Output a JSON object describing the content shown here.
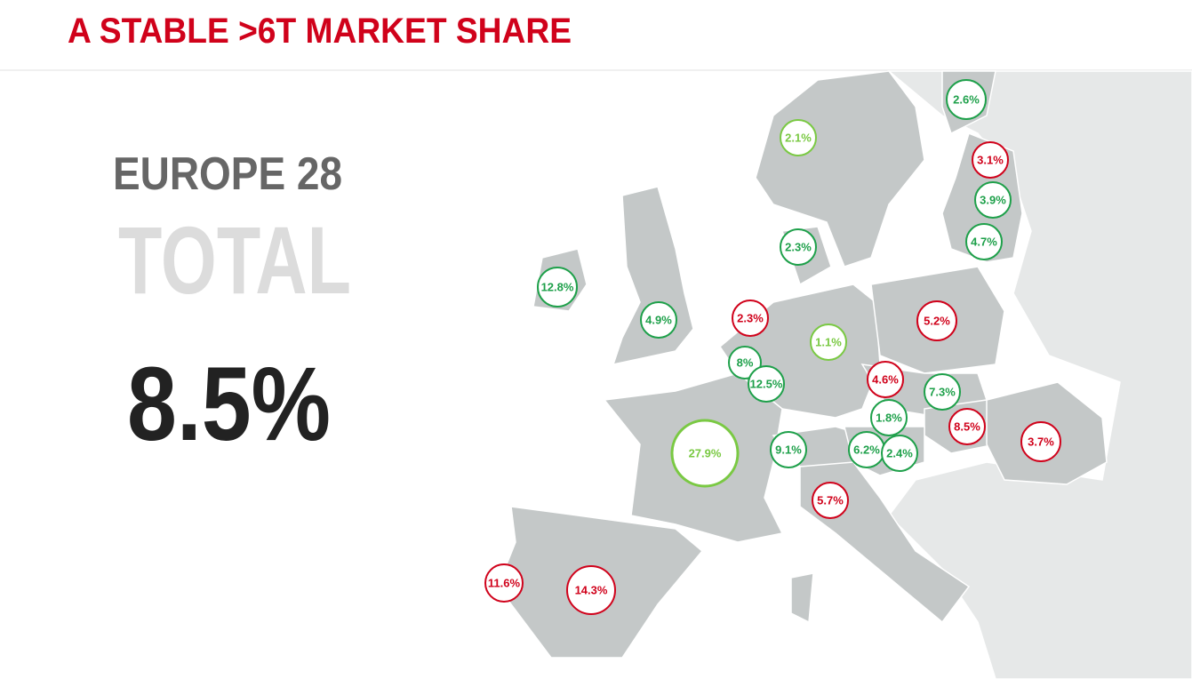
{
  "header": {
    "title": "A STABLE >6T MARKET SHARE"
  },
  "summary": {
    "region": "EUROPE 28",
    "label": "TOTAL",
    "value": "8.5%"
  },
  "markers": [
    {
      "label": "2.6%",
      "color": "#1ea04a"
    },
    {
      "label": "2.1%",
      "color": "#7ac943"
    },
    {
      "label": "3.1%",
      "color": "#d0021b"
    },
    {
      "label": "3.9%",
      "color": "#1ea04a"
    },
    {
      "label": "2.3%",
      "color": "#1ea04a"
    },
    {
      "label": "4.7%",
      "color": "#1ea04a"
    },
    {
      "label": "12.8%",
      "color": "#1ea04a"
    },
    {
      "label": "4.9%",
      "color": "#1ea04a"
    },
    {
      "label": "2.3%",
      "color": "#d0021b"
    },
    {
      "label": "5.2%",
      "color": "#d0021b"
    },
    {
      "label": "1.1%",
      "color": "#7ac943"
    },
    {
      "label": "8%",
      "color": "#1ea04a"
    },
    {
      "label": "12.5%",
      "color": "#1ea04a"
    },
    {
      "label": "4.6%",
      "color": "#d0021b"
    },
    {
      "label": "7.3%",
      "color": "#1ea04a"
    },
    {
      "label": "1.8%",
      "color": "#1ea04a"
    },
    {
      "label": "8.5%",
      "color": "#d0021b"
    },
    {
      "label": "3.7%",
      "color": "#d0021b"
    },
    {
      "label": "27.9%",
      "color": "#7ac943"
    },
    {
      "label": "9.1%",
      "color": "#1ea04a"
    },
    {
      "label": "6.2%",
      "color": "#1ea04a"
    },
    {
      "label": "2.4%",
      "color": "#1ea04a"
    },
    {
      "label": "5.7%",
      "color": "#d0021b"
    },
    {
      "label": "11.6%",
      "color": "#d0021b"
    },
    {
      "label": "14.3%",
      "color": "#d0021b"
    }
  ]
}
